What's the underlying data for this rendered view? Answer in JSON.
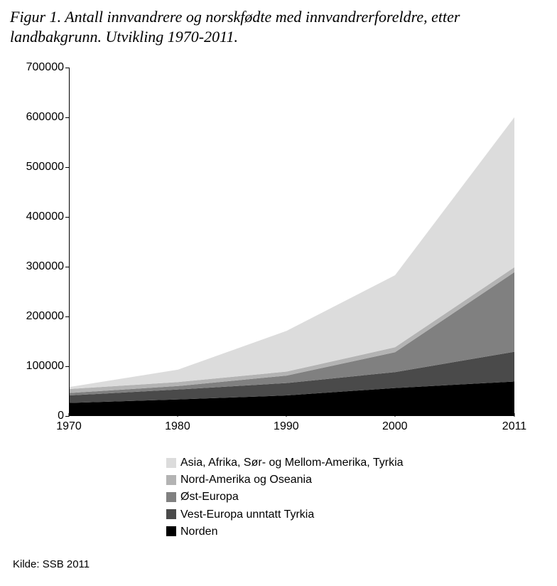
{
  "title_line1": "Figur 1. Antall innvandrere og norskfødte med innvandrerforeldre, etter",
  "title_line2": "landbakgrunn. Utvikling 1970-2011.",
  "source": "Kilde: SSB 2011",
  "chart": {
    "type": "area",
    "background_color": "#ffffff",
    "axis_color": "#000000",
    "x": {
      "labels": [
        "1970",
        "1980",
        "1990",
        "2000",
        "2011"
      ],
      "values": [
        1970,
        1980,
        1990,
        2000,
        2011
      ],
      "min": 1970,
      "max": 2011
    },
    "y": {
      "min": 0,
      "max": 700000,
      "ticks": [
        0,
        100000,
        200000,
        300000,
        400000,
        500000,
        600000,
        700000
      ]
    },
    "series": [
      {
        "name": "Norden",
        "color": "#000000",
        "values": [
          25000,
          32000,
          40000,
          55000,
          68000
        ]
      },
      {
        "name": "Vest-Europa unntatt Tyrkia",
        "color": "#4a4a4a",
        "values": [
          15000,
          20000,
          25000,
          32000,
          60000
        ]
      },
      {
        "name": "Øst-Europa",
        "color": "#808080",
        "values": [
          5000,
          7000,
          15000,
          40000,
          160000
        ]
      },
      {
        "name": "Nord-Amerika og Oseania",
        "color": "#b3b3b3",
        "values": [
          8000,
          8000,
          8000,
          10000,
          10000
        ]
      },
      {
        "name": "Asia, Afrika, Sør- og Mellom-Amerika, Tyrkia",
        "color": "#dcdcdc",
        "values": [
          4000,
          25000,
          82000,
          145000,
          302000
        ]
      }
    ],
    "legend_order": [
      4,
      3,
      2,
      1,
      0
    ],
    "label_fontsize": 16,
    "title_fontsize": 22
  }
}
